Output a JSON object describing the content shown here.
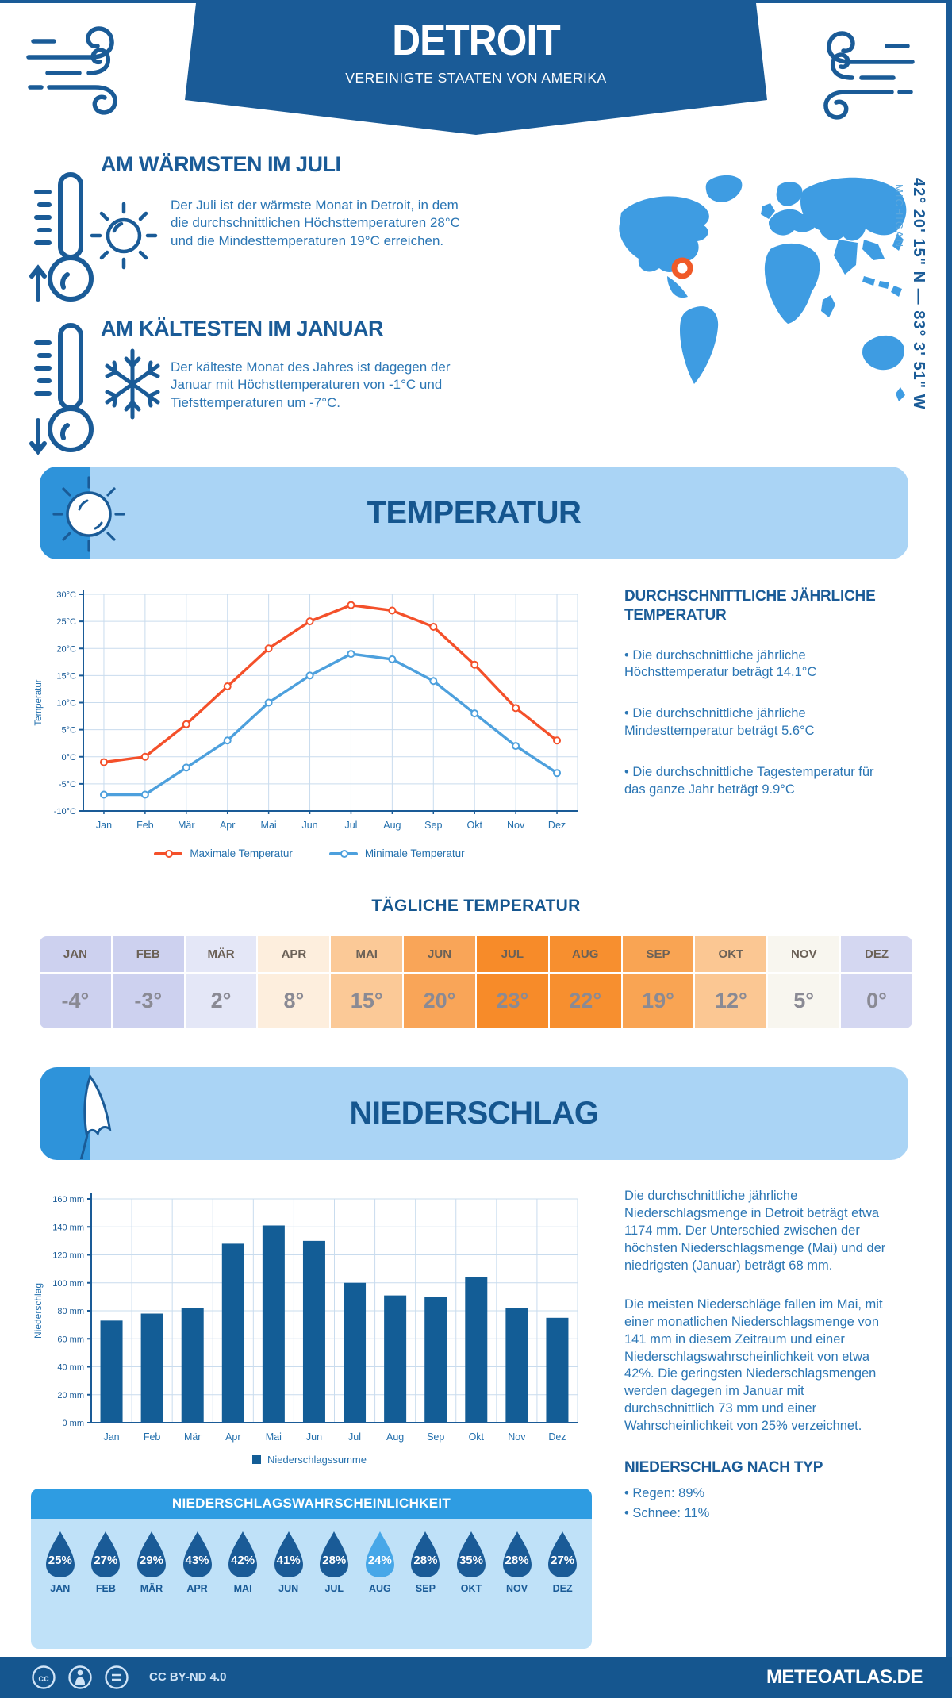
{
  "banner": {
    "title": "DETROIT",
    "subtitle": "VEREINIGTE STAATEN VON AMERIKA"
  },
  "location": {
    "coordinates": "42° 20' 15\" N — 83° 3' 51\" W",
    "region": "MICHIGAN"
  },
  "highlights": {
    "warm": {
      "heading": "AM WÄRMSTEN IM JULI",
      "text": "Der Juli ist der wärmste Monat in Detroit, in dem die durchschnittlichen Höchsttemperaturen 28°C und die Mindesttemperaturen 19°C erreichen."
    },
    "cold": {
      "heading": "AM KÄLTESTEN IM JANUAR",
      "text": "Der kälteste Monat des Jahres ist dagegen der Januar mit Höchsttemperaturen von -1°C und Tiefsttemperaturen um -7°C."
    }
  },
  "temperature_section": {
    "title": "TEMPERATUR",
    "annual": {
      "heading": "DURCHSCHNITTLICHE JÄHRLICHE TEMPERATUR",
      "bullets": [
        "• Die durchschnittliche jährliche Höchsttemperatur beträgt 14.1°C",
        "• Die durchschnittliche jährliche Mindesttemperatur beträgt 5.6°C",
        "• Die durchschnittliche Tagestemperatur für das ganze Jahr beträgt 9.9°C"
      ]
    },
    "daily": {
      "title": "TÄGLICHE TEMPERATUR",
      "months": [
        "JAN",
        "FEB",
        "MÄR",
        "APR",
        "MAI",
        "JUN",
        "JUL",
        "AUG",
        "SEP",
        "OKT",
        "NOV",
        "DEZ"
      ],
      "values": [
        "-4°",
        "-3°",
        "2°",
        "8°",
        "15°",
        "20°",
        "23°",
        "22°",
        "19°",
        "12°",
        "5°",
        "0°"
      ],
      "cell_colors": [
        "#cdd1ef",
        "#cdd1ef",
        "#e4e7f7",
        "#fdeedd",
        "#fbc997",
        "#f9a558",
        "#f78b29",
        "#f78f2f",
        "#f9a453",
        "#fbc793",
        "#f8f6ef",
        "#d4d7f1"
      ]
    }
  },
  "precipitation_section": {
    "title": "NIEDERSCHLAG",
    "paragraphs": [
      "Die durchschnittliche jährliche Niederschlagsmenge in Detroit beträgt etwa 1174 mm. Der Unterschied zwischen der höchsten Niederschlagsmenge (Mai) und der niedrigsten (Januar) beträgt 68 mm.",
      "Die meisten Niederschläge fallen im Mai, mit einer monatlichen Niederschlagsmenge von 141 mm in diesem Zeitraum und einer Niederschlagswahrscheinlichkeit von etwa 42%. Die geringsten Niederschlagsmengen werden dagegen im Januar mit durchschnittlich 73 mm und einer Wahrscheinlichkeit von 25% verzeichnet."
    ],
    "by_type": {
      "heading": "NIEDERSCHLAG NACH TYP",
      "items": [
        "• Regen: 89%",
        "• Schnee: 11%"
      ]
    },
    "probability": {
      "title": "NIEDERSCHLAGSWAHRSCHEINLICHKEIT",
      "months": [
        "JAN",
        "FEB",
        "MÄR",
        "APR",
        "MAI",
        "JUN",
        "JUL",
        "AUG",
        "SEP",
        "OKT",
        "NOV",
        "DEZ"
      ],
      "values": [
        "25%",
        "27%",
        "29%",
        "43%",
        "42%",
        "41%",
        "28%",
        "24%",
        "28%",
        "35%",
        "28%",
        "27%"
      ],
      "highlight_index": 7,
      "drop_color": "#1a5b97",
      "highlight_color": "#47a7e8"
    }
  },
  "footer": {
    "license": "CC BY-ND 4.0",
    "site": "METEOATLAS.DE"
  },
  "colors": {
    "brand": "#1a5b97",
    "map": "#3e9ce2",
    "marker": "#f05a28",
    "panel_bg": "#aad4f5",
    "panel_cap": "#2e93da",
    "prob_bg": "#bfe1f8",
    "prob_header": "#2e9ce2",
    "max_line": "#f4502a",
    "min_line": "#4da0dd",
    "bar": "#135d96"
  },
  "chart_data": [
    {
      "type": "line",
      "categories": [
        "Jan",
        "Feb",
        "Mär",
        "Apr",
        "Mai",
        "Jun",
        "Jul",
        "Aug",
        "Sep",
        "Okt",
        "Nov",
        "Dez"
      ],
      "series": [
        {
          "name": "Maximale Temperatur",
          "color": "#f4502a",
          "values": [
            -1,
            0,
            6,
            13,
            20,
            25,
            28,
            27,
            24,
            17,
            9,
            3
          ]
        },
        {
          "name": "Minimale Temperatur",
          "color": "#4da0dd",
          "values": [
            -7,
            -7,
            -2,
            3,
            10,
            15,
            19,
            18,
            14,
            8,
            2,
            -3
          ]
        }
      ],
      "ylabel": "Temperatur",
      "ylim": [
        -10,
        30
      ],
      "ytick_step": 5,
      "ytick_suffix": "°C",
      "grid": true,
      "legend_position": "bottom"
    },
    {
      "type": "bar",
      "categories": [
        "Jan",
        "Feb",
        "Mär",
        "Apr",
        "Mai",
        "Jun",
        "Jul",
        "Aug",
        "Sep",
        "Okt",
        "Nov",
        "Dez"
      ],
      "values": [
        73,
        78,
        82,
        128,
        141,
        130,
        100,
        91,
        90,
        104,
        82,
        75
      ],
      "legend": "Niederschlagssumme",
      "ylabel": "Niederschlag",
      "ylim": [
        0,
        160
      ],
      "ytick_step": 20,
      "ytick_suffix": " mm",
      "bar_color": "#135d96",
      "grid": true
    }
  ]
}
